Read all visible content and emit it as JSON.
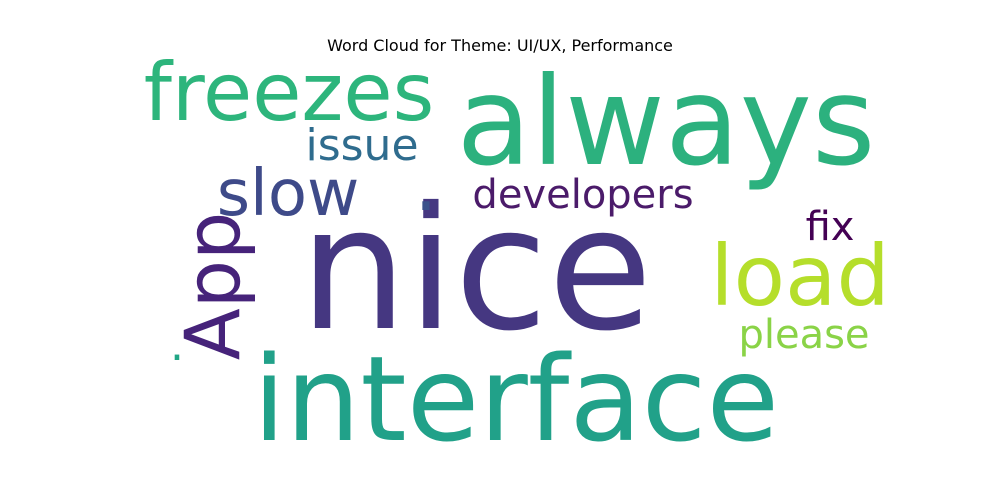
{
  "chart_data": {
    "type": "wordcloud",
    "title": "Word Cloud for Theme: UI/UX, Performance",
    "colormap": "viridis",
    "words": [
      {
        "text": "nice",
        "weight": 1.0,
        "color": "#453781"
      },
      {
        "text": "interface",
        "weight": 0.85,
        "color": "#21a189"
      },
      {
        "text": "always",
        "weight": 0.78,
        "color": "#2cb17e"
      },
      {
        "text": "freezes",
        "weight": 0.55,
        "color": "#2db57c"
      },
      {
        "text": "App",
        "weight": 0.52,
        "color": "#46237a"
      },
      {
        "text": "load",
        "weight": 0.5,
        "color": "#b5de2b"
      },
      {
        "text": "slow",
        "weight": 0.45,
        "color": "#3e4a89"
      },
      {
        "text": "developers",
        "weight": 0.3,
        "color": "#4b1b6a"
      },
      {
        "text": "issue",
        "weight": 0.3,
        "color": "#2f6c8e"
      },
      {
        "text": "please",
        "weight": 0.3,
        "color": "#8ad347"
      },
      {
        "text": "fix",
        "weight": 0.3,
        "color": "#440154"
      },
      {
        "text": ".",
        "weight": 0.3,
        "color": "#3b528b"
      },
      {
        "text": ".",
        "weight": 0.2,
        "color": "#21a685"
      }
    ]
  }
}
